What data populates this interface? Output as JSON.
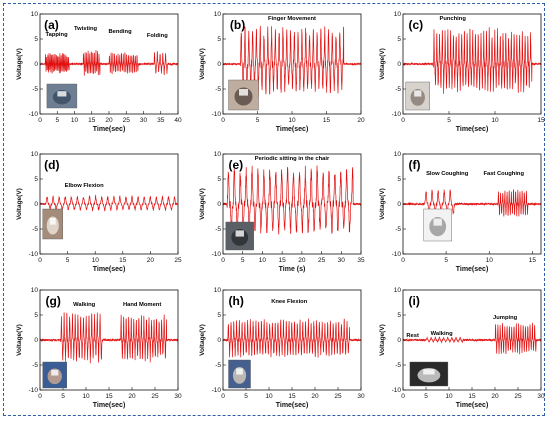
{
  "colors": {
    "signal": "#e01010",
    "frame": "#2f5da8",
    "axis": "#111111"
  },
  "chart_data": [
    {
      "id": "a",
      "type": "line",
      "label": "(a)",
      "xlabel": "Time(sec)",
      "ylabel": "Voltage(V)",
      "xlim": [
        0,
        40
      ],
      "ylim": [
        -10,
        10
      ],
      "xticks": [
        "0",
        "5",
        "10",
        "15",
        "20",
        "25",
        "30",
        "35",
        "40"
      ],
      "yticks": [
        "-10",
        "-5",
        "0",
        "5",
        "10"
      ],
      "annotations": [
        "Tapping",
        "Twisting",
        "Bending",
        "Folding"
      ],
      "segments": [
        {
          "name": "Tapping",
          "x": [
            1.5,
            8.5
          ],
          "amp": 2.2,
          "period": 0.35
        },
        {
          "name": "Twisting",
          "x": [
            12.5,
            17.5
          ],
          "amp": 2.8,
          "period": 0.45
        },
        {
          "name": "Bending",
          "x": [
            20,
            28.5
          ],
          "amp": 2.3,
          "period": 0.5
        },
        {
          "name": "Folding",
          "x": [
            33,
            37
          ],
          "amp": 2.5,
          "period": 0.8
        }
      ],
      "photo": "phone-on-laptop-photo"
    },
    {
      "id": "b",
      "type": "line",
      "label": "(b)",
      "xlabel": "Time(sec)",
      "ylabel": "Voltage(V)",
      "xlim": [
        0,
        20
      ],
      "ylim": [
        -10,
        10
      ],
      "xticks": [
        "0",
        "5",
        "10",
        "15",
        "20"
      ],
      "yticks": [
        "-10",
        "-5",
        "0",
        "5",
        "10"
      ],
      "annotations": [
        "Finger Movement"
      ],
      "segments": [
        {
          "name": "Finger Movement",
          "x": [
            2.5,
            17.5
          ],
          "amp": 7.5,
          "period": 0.55
        }
      ],
      "photo": "finger-sensor-photo"
    },
    {
      "id": "c",
      "type": "line",
      "label": "(c)",
      "xlabel": "Time(sec)",
      "ylabel": "Voltage(V)",
      "xlim": [
        0,
        15
      ],
      "ylim": [
        -10,
        10
      ],
      "xticks": [
        "0",
        "5",
        "10",
        "15"
      ],
      "yticks": [
        "-10",
        "-5",
        "0",
        "5",
        "10"
      ],
      "annotations": [
        "Punching"
      ],
      "segments": [
        {
          "name": "Punching",
          "x": [
            3.3,
            14
          ],
          "amp": 7,
          "period": 0.3
        }
      ],
      "photo": "fist-sensor-photo"
    },
    {
      "id": "d",
      "type": "line",
      "label": "(d)",
      "xlabel": "Time(sec)",
      "ylabel": "Voltage(V)",
      "xlim": [
        0,
        25
      ],
      "ylim": [
        -10,
        10
      ],
      "xticks": [
        "0",
        "5",
        "10",
        "15",
        "20",
        "25"
      ],
      "yticks": [
        "-10",
        "-5",
        "0",
        "5",
        "10"
      ],
      "annotations": [
        "Elbow Flexion"
      ],
      "segments": [
        {
          "name": "Elbow Flexion",
          "x": [
            1,
            24.5
          ],
          "amp": 1.6,
          "period": 1.1
        }
      ],
      "photo": "elbow-sensor-photo"
    },
    {
      "id": "e",
      "type": "line",
      "label": "(e)",
      "xlabel": "Time (s)",
      "ylabel": "Voltage(V)",
      "xlim": [
        0,
        35
      ],
      "ylim": [
        -10,
        10
      ],
      "xticks": [
        "0",
        "5",
        "10",
        "15",
        "20",
        "25",
        "30",
        "35"
      ],
      "yticks": [
        "-10",
        "-5",
        "0",
        "5",
        "10"
      ],
      "annotations": [
        "Periodic sitting in the chair"
      ],
      "segments": [
        {
          "name": "Periodic sitting in the chair",
          "x": [
            1,
            33
          ],
          "amp": 7.5,
          "period": 1.5
        }
      ],
      "photo": "chair-sensor-photo"
    },
    {
      "id": "f",
      "type": "line",
      "label": "(f)",
      "xlabel": "Time(sec)",
      "ylabel": "Voltage(V)",
      "xlim": [
        0,
        16
      ],
      "ylim": [
        -10,
        10
      ],
      "xticks": [
        "0",
        "5",
        "10",
        "15"
      ],
      "yticks": [
        "-10",
        "-5",
        "0",
        "5",
        "10"
      ],
      "annotations": [
        "Slow Coughing",
        "Fast Coughing"
      ],
      "segments": [
        {
          "name": "Slow Coughing",
          "x": [
            2.5,
            6
          ],
          "amp": 3,
          "period": 0.7
        },
        {
          "name": "Fast Coughing",
          "x": [
            11,
            14.5
          ],
          "amp": 3,
          "period": 0.25
        }
      ],
      "photo": "mask-sensor-photo"
    },
    {
      "id": "g",
      "type": "line",
      "label": "(g)",
      "xlabel": "Time(sec)",
      "ylabel": "Voltage(V)",
      "xlim": [
        0,
        30
      ],
      "ylim": [
        -10,
        10
      ],
      "xticks": [
        "0",
        "5",
        "10",
        "15",
        "20",
        "25",
        "30"
      ],
      "yticks": [
        "-10",
        "-5",
        "0",
        "5",
        "10"
      ],
      "annotations": [
        "Walking",
        "Hand Moment"
      ],
      "segments": [
        {
          "name": "Walking",
          "x": [
            4.5,
            13.5
          ],
          "amp": 5.5,
          "period": 0.6
        },
        {
          "name": "Hand Moment",
          "x": [
            17.5,
            27.5
          ],
          "amp": 5,
          "period": 0.55
        }
      ],
      "photo": "pocket-sensor-photo"
    },
    {
      "id": "h",
      "type": "line",
      "label": "(h)",
      "xlabel": "Time(sec)",
      "ylabel": "Voltage(V)",
      "xlim": [
        0,
        30
      ],
      "ylim": [
        -10,
        10
      ],
      "xticks": [
        "0",
        "5",
        "10",
        "15",
        "20",
        "25",
        "30"
      ],
      "yticks": [
        "-10",
        "-5",
        "0",
        "5",
        "10"
      ],
      "annotations": [
        "Knee Flexion"
      ],
      "segments": [
        {
          "name": "Knee Flexion",
          "x": [
            1,
            27.5
          ],
          "amp": 4.2,
          "period": 0.6
        }
      ],
      "photo": "knee-sensor-photo"
    },
    {
      "id": "i",
      "type": "line",
      "label": "(i)",
      "xlabel": "Time(sec)",
      "ylabel": "Voltage(V)",
      "xlim": [
        0,
        30
      ],
      "ylim": [
        -10,
        10
      ],
      "xticks": [
        "0",
        "5",
        "10",
        "15",
        "20",
        "25",
        "30"
      ],
      "yticks": [
        "-10",
        "-5",
        "0",
        "5",
        "10"
      ],
      "annotations": [
        "Rest",
        "Walking",
        "Jumping"
      ],
      "segments": [
        {
          "name": "Walking",
          "x": [
            5,
            13
          ],
          "amp": 0.6,
          "period": 0.9
        },
        {
          "name": "Jumping",
          "x": [
            20,
            29
          ],
          "amp": 3.5,
          "period": 0.5
        }
      ],
      "photo": "shoe-sensor-photo"
    }
  ]
}
